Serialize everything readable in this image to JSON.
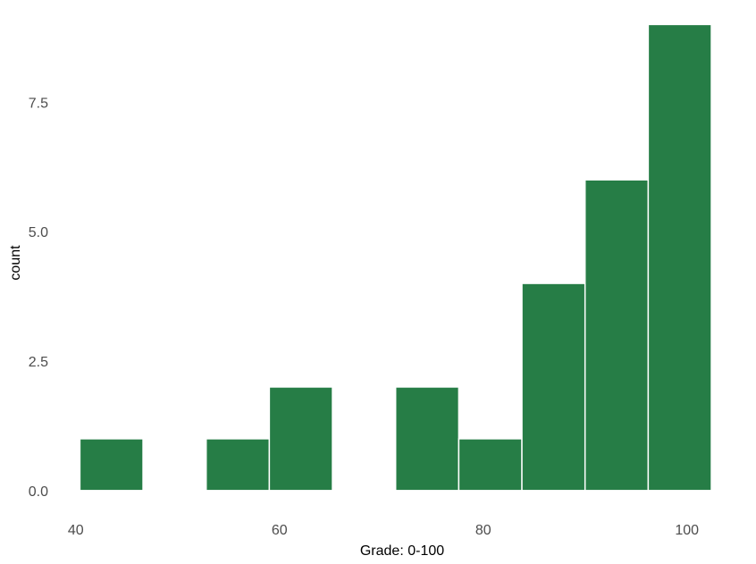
{
  "chart_data": {
    "type": "bar",
    "subtype": "histogram",
    "xlabel": "Grade: 0-100",
    "ylabel": "count",
    "bar_color": "#267d46",
    "bar_edge_color": "#ffffff",
    "grid": false,
    "xlim": [
      38.7,
      103.8
    ],
    "ylim": [
      -0.4,
      9.3
    ],
    "x_ticks": [
      {
        "value": 40,
        "label": "40"
      },
      {
        "value": 60,
        "label": "60"
      },
      {
        "value": 80,
        "label": "80"
      },
      {
        "value": 100,
        "label": "100"
      }
    ],
    "y_ticks": [
      {
        "value": 0,
        "label": "0.0"
      },
      {
        "value": 2.5,
        "label": "2.5"
      },
      {
        "value": 5,
        "label": "5.0"
      },
      {
        "value": 7.5,
        "label": "7.5"
      }
    ],
    "bins": [
      {
        "x0": 40.4,
        "x1": 46.6,
        "count": 1
      },
      {
        "x0": 46.6,
        "x1": 52.8,
        "count": 0
      },
      {
        "x0": 52.8,
        "x1": 59.0,
        "count": 1
      },
      {
        "x0": 59.0,
        "x1": 65.2,
        "count": 2
      },
      {
        "x0": 65.2,
        "x1": 71.4,
        "count": 0
      },
      {
        "x0": 71.4,
        "x1": 77.6,
        "count": 2
      },
      {
        "x0": 77.6,
        "x1": 83.8,
        "count": 1
      },
      {
        "x0": 83.8,
        "x1": 90.0,
        "count": 4
      },
      {
        "x0": 90.0,
        "x1": 96.2,
        "count": 6
      },
      {
        "x0": 96.2,
        "x1": 102.4,
        "count": 9
      }
    ]
  }
}
